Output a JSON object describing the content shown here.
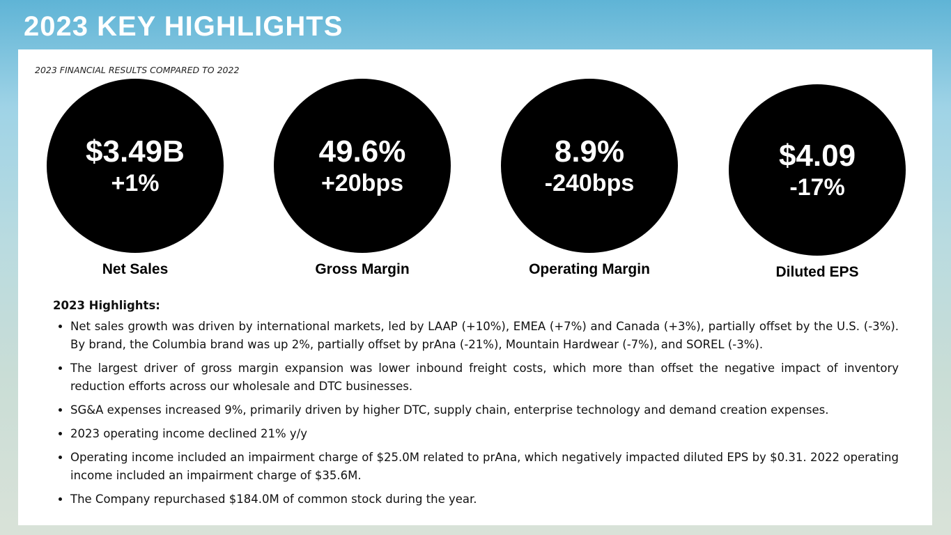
{
  "title": "2023 KEY HIGHLIGHTS",
  "subtitle": "2023 FINANCIAL RESULTS COMPARED TO 2022",
  "metrics": [
    {
      "value": "$3.49B",
      "change": "+1%",
      "label": "Net Sales"
    },
    {
      "value": "49.6%",
      "change": "+20bps",
      "label": "Gross Margin"
    },
    {
      "value": "8.9%",
      "change": "-240bps",
      "label": "Operating Margin"
    },
    {
      "value": "$4.09",
      "change": "-17%",
      "label": "Diluted EPS"
    }
  ],
  "highlights": {
    "heading": "2023 Highlights:",
    "items": [
      "Net sales growth was driven by international markets, led by LAAP (+10%), EMEA (+7%) and Canada (+3%), partially offset by the U.S. (-3%). By brand, the Columbia brand was up 2%, partially offset by prAna (-21%), Mountain Hardwear (-7%), and SOREL (-3%).",
      "The largest driver of gross margin expansion was lower inbound freight costs, which more than offset the negative impact of inventory reduction efforts across our wholesale and DTC businesses.",
      "SG&A expenses increased 9%, primarily driven by higher DTC, supply chain, enterprise technology and demand creation expenses.",
      "2023 operating income declined 21% y/y",
      "Operating income included an impairment charge of $25.0M related to prAna, which negatively impacted diluted EPS by $0.31. 2022 operating income included an impairment charge of $35.6M.",
      "The Company repurchased $184.0M of common stock during the year."
    ]
  }
}
